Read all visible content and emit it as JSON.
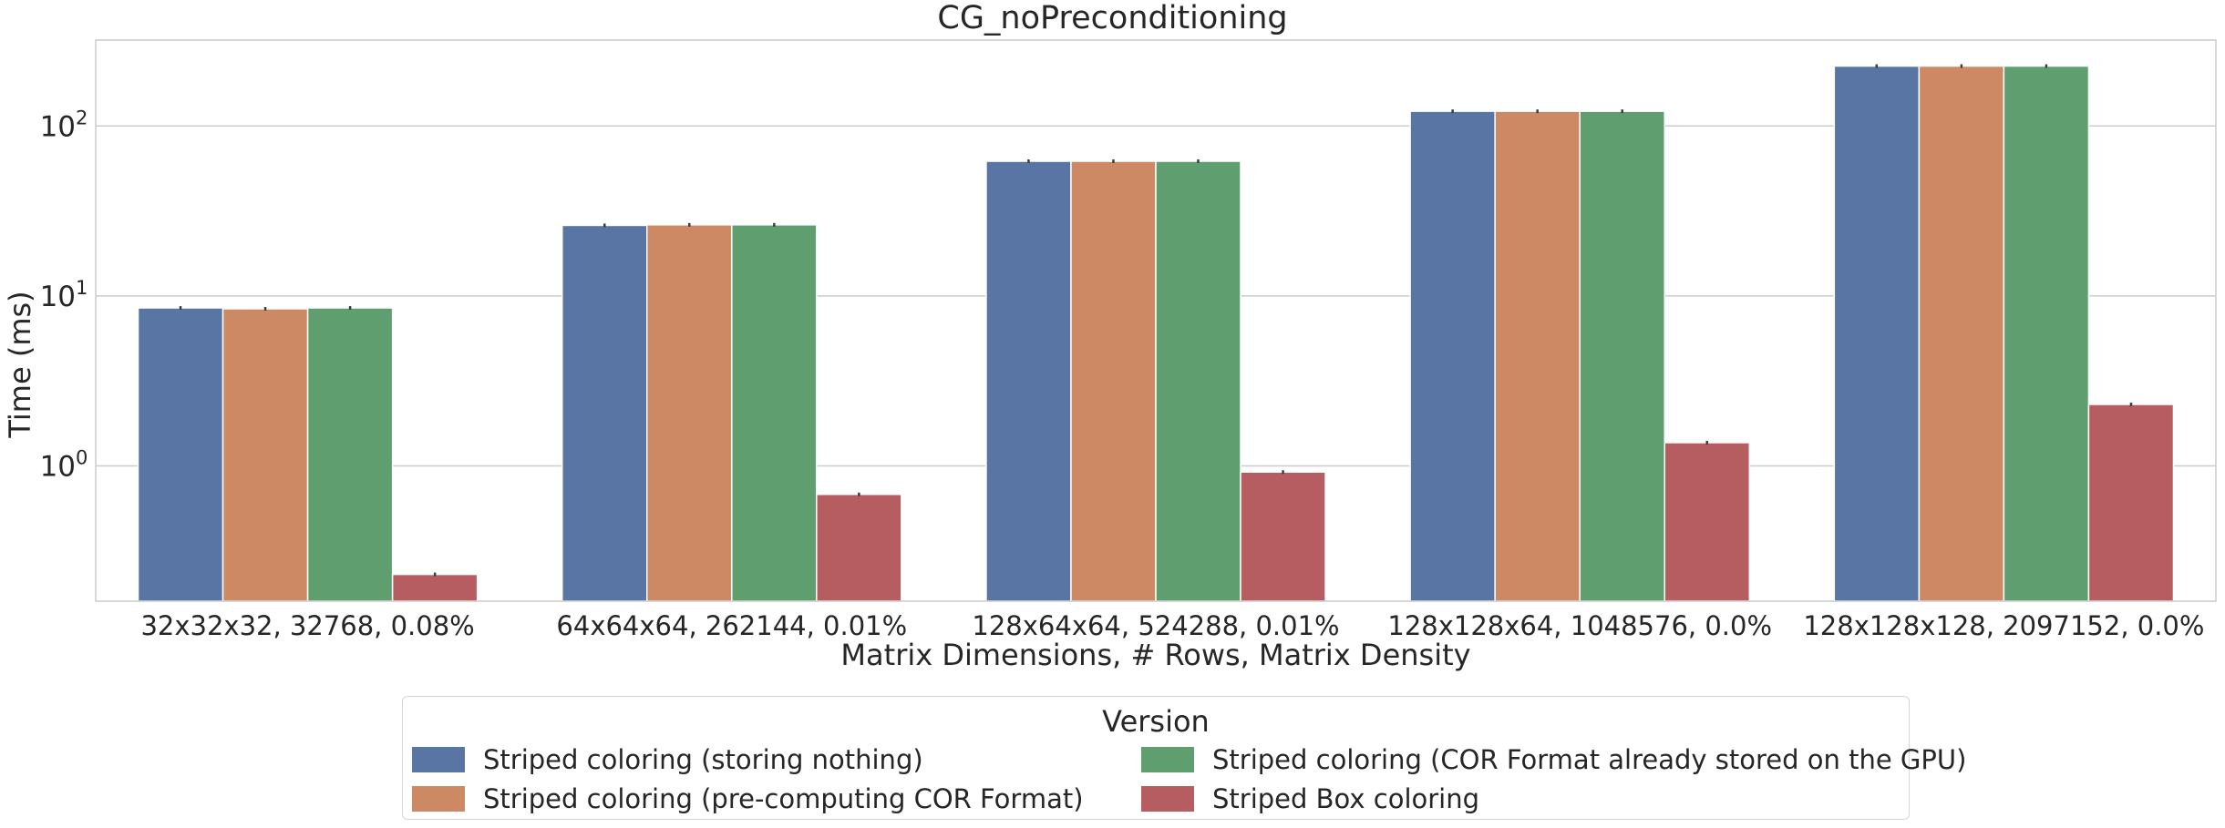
{
  "chart_data": {
    "type": "bar",
    "title": "CG_noPreconditioning",
    "xlabel": "Matrix Dimensions, # Rows, Matrix Density",
    "ylabel": "Time (ms)",
    "yscale": "log",
    "ylim": [
      0.16,
      320
    ],
    "yticks": [
      1,
      10,
      100
    ],
    "ytick_labels": [
      {
        "base": "10",
        "exp": "0"
      },
      {
        "base": "10",
        "exp": "1"
      },
      {
        "base": "10",
        "exp": "2"
      }
    ],
    "grid": true,
    "legend_position": "bottom-center",
    "categories": [
      "32x32x32, 32768, 0.08%",
      "64x64x64, 262144, 0.01%",
      "128x64x64, 524288, 0.01%",
      "128x128x64, 1048576, 0.0%",
      "128x128x128, 2097152, 0.0%"
    ],
    "series": [
      {
        "name": "Striped coloring (storing nothing)",
        "color": "#5975a4",
        "values": [
          8.5,
          26.0,
          62.0,
          122.0,
          225.0
        ]
      },
      {
        "name": "Striped coloring (pre-computing COR Format)",
        "color": "#cc8963",
        "values": [
          8.4,
          26.2,
          62.0,
          122.0,
          225.0
        ]
      },
      {
        "name": "Striped coloring (COR Format already stored on the GPU)",
        "color": "#5f9e6e",
        "values": [
          8.5,
          26.2,
          62.0,
          122.0,
          225.0
        ]
      },
      {
        "name": "Striped Box coloring",
        "color": "#b55d60",
        "values": [
          0.23,
          0.68,
          0.92,
          1.37,
          2.3
        ]
      }
    ]
  },
  "legend": {
    "title": "Version"
  }
}
